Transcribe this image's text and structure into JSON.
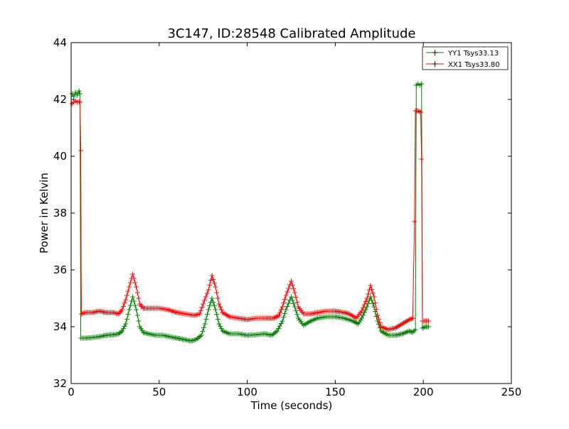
{
  "chart_data": {
    "type": "line",
    "title": "3C147, ID:28548 Calibrated Amplitude",
    "xlabel": "Time (seconds)",
    "ylabel": "Power in Kelvin",
    "xlim": [
      0,
      250
    ],
    "ylim": [
      32,
      44
    ],
    "xticks": [
      "0",
      "50",
      "100",
      "150",
      "200",
      "250"
    ],
    "yticks": [
      "32",
      "34",
      "36",
      "38",
      "40",
      "42",
      "44"
    ],
    "grid": false,
    "legend_position": "top-right",
    "series": [
      {
        "name": "YY1 Tsys33.13",
        "color": "#008000",
        "marker": "+",
        "points": [
          [
            0.5,
            42.2
          ],
          [
            1.5,
            42.1
          ],
          [
            2.5,
            42.25
          ],
          [
            3.5,
            42.15
          ],
          [
            4.5,
            42.3
          ],
          [
            5.0,
            42.2
          ],
          [
            5.5,
            33.6
          ],
          [
            8,
            33.6
          ],
          [
            12,
            33.62
          ],
          [
            16,
            33.65
          ],
          [
            20,
            33.7
          ],
          [
            24,
            33.72
          ],
          [
            27,
            33.75
          ],
          [
            29,
            33.85
          ],
          [
            31,
            34.1
          ],
          [
            33,
            34.6
          ],
          [
            35,
            35.05
          ],
          [
            37,
            34.6
          ],
          [
            39,
            34.0
          ],
          [
            41,
            33.8
          ],
          [
            44,
            33.75
          ],
          [
            48,
            33.7
          ],
          [
            52,
            33.7
          ],
          [
            56,
            33.65
          ],
          [
            60,
            33.6
          ],
          [
            64,
            33.55
          ],
          [
            68,
            33.5
          ],
          [
            71,
            33.55
          ],
          [
            74,
            33.7
          ],
          [
            76,
            34.1
          ],
          [
            78,
            34.6
          ],
          [
            80,
            35.0
          ],
          [
            82,
            34.6
          ],
          [
            84,
            34.1
          ],
          [
            86,
            33.85
          ],
          [
            90,
            33.75
          ],
          [
            95,
            33.75
          ],
          [
            100,
            33.7
          ],
          [
            105,
            33.72
          ],
          [
            110,
            33.75
          ],
          [
            114,
            33.7
          ],
          [
            117,
            33.85
          ],
          [
            120,
            34.2
          ],
          [
            122,
            34.6
          ],
          [
            125,
            35.05
          ],
          [
            127,
            34.7
          ],
          [
            129,
            34.3
          ],
          [
            132,
            34.05
          ],
          [
            136,
            34.2
          ],
          [
            140,
            34.3
          ],
          [
            145,
            34.35
          ],
          [
            150,
            34.35
          ],
          [
            155,
            34.3
          ],
          [
            160,
            34.2
          ],
          [
            163,
            34.1
          ],
          [
            165,
            34.3
          ],
          [
            168,
            34.7
          ],
          [
            170,
            35.05
          ],
          [
            172,
            34.7
          ],
          [
            174,
            34.2
          ],
          [
            176,
            33.85
          ],
          [
            180,
            33.7
          ],
          [
            184,
            33.7
          ],
          [
            188,
            33.75
          ],
          [
            192,
            33.85
          ],
          [
            194,
            33.8
          ],
          [
            195.5,
            33.9
          ],
          [
            196,
            42.5
          ],
          [
            197,
            42.55
          ],
          [
            198,
            42.5
          ],
          [
            199,
            42.55
          ],
          [
            199.5,
            33.95
          ],
          [
            201,
            34.0
          ],
          [
            203,
            34.0
          ]
        ]
      },
      {
        "name": "XX1 Tsys33.80",
        "color": "#ff0000",
        "marker": "+",
        "points": [
          [
            0.5,
            41.85
          ],
          [
            1.5,
            41.9
          ],
          [
            2.5,
            41.95
          ],
          [
            3.5,
            41.9
          ],
          [
            4.5,
            41.92
          ],
          [
            5.0,
            41.9
          ],
          [
            5.5,
            40.2
          ],
          [
            5.8,
            34.45
          ],
          [
            8,
            34.5
          ],
          [
            12,
            34.5
          ],
          [
            16,
            34.55
          ],
          [
            20,
            34.5
          ],
          [
            24,
            34.5
          ],
          [
            27,
            34.45
          ],
          [
            29,
            34.6
          ],
          [
            31,
            34.95
          ],
          [
            33,
            35.4
          ],
          [
            35,
            35.85
          ],
          [
            37,
            35.4
          ],
          [
            39,
            34.8
          ],
          [
            41,
            34.65
          ],
          [
            45,
            34.65
          ],
          [
            50,
            34.65
          ],
          [
            55,
            34.6
          ],
          [
            60,
            34.5
          ],
          [
            65,
            34.45
          ],
          [
            70,
            34.4
          ],
          [
            73,
            34.45
          ],
          [
            75,
            34.8
          ],
          [
            78,
            35.3
          ],
          [
            80,
            35.8
          ],
          [
            82,
            35.4
          ],
          [
            84,
            34.8
          ],
          [
            86,
            34.5
          ],
          [
            90,
            34.35
          ],
          [
            95,
            34.3
          ],
          [
            100,
            34.25
          ],
          [
            105,
            34.3
          ],
          [
            110,
            34.3
          ],
          [
            115,
            34.3
          ],
          [
            118,
            34.4
          ],
          [
            120,
            34.7
          ],
          [
            122,
            35.1
          ],
          [
            125,
            35.6
          ],
          [
            127,
            35.2
          ],
          [
            129,
            34.7
          ],
          [
            132,
            34.45
          ],
          [
            136,
            34.45
          ],
          [
            140,
            34.5
          ],
          [
            145,
            34.55
          ],
          [
            150,
            34.55
          ],
          [
            155,
            34.5
          ],
          [
            158,
            34.45
          ],
          [
            162,
            34.3
          ],
          [
            165,
            34.55
          ],
          [
            168,
            35.0
          ],
          [
            170,
            35.45
          ],
          [
            172,
            35.05
          ],
          [
            174,
            34.4
          ],
          [
            176,
            34.0
          ],
          [
            180,
            33.9
          ],
          [
            184,
            33.95
          ],
          [
            188,
            34.1
          ],
          [
            192,
            34.25
          ],
          [
            194,
            34.3
          ],
          [
            195,
            37.7
          ],
          [
            195.5,
            41.6
          ],
          [
            197,
            41.6
          ],
          [
            198.5,
            41.55
          ],
          [
            199,
            39.9
          ],
          [
            199.5,
            34.2
          ],
          [
            201,
            34.2
          ],
          [
            203,
            34.2
          ]
        ]
      }
    ]
  }
}
